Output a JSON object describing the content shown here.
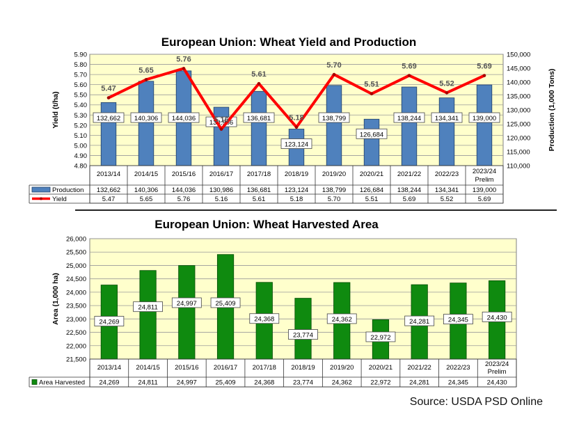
{
  "source": "Source: USDA PSD Online",
  "chart_data": [
    {
      "type": "bar",
      "title": "European Union: Wheat Yield and Production",
      "categories": [
        "2013/14",
        "2014/15",
        "2015/16",
        "2016/17",
        "2017/18",
        "2018/19",
        "2019/20",
        "2020/21",
        "2021/22",
        "2022/23",
        "2023/24 Prelim"
      ],
      "category_lines": [
        [
          "2013/14"
        ],
        [
          "2014/15"
        ],
        [
          "2015/16"
        ],
        [
          "2016/17"
        ],
        [
          "2017/18"
        ],
        [
          "2018/19"
        ],
        [
          "2019/20"
        ],
        [
          "2020/21"
        ],
        [
          "2021/22"
        ],
        [
          "2022/23"
        ],
        [
          "2023/24",
          "Prelim"
        ]
      ],
      "ylabel": "Yield (t/ha)",
      "y2label": "Production (1,000 Tons)",
      "ylim": [
        4.8,
        5.9
      ],
      "y2lim": [
        110000,
        150000
      ],
      "yticks": [
        "4.80",
        "4.90",
        "5.00",
        "5.10",
        "5.20",
        "5.30",
        "5.40",
        "5.50",
        "5.60",
        "5.70",
        "5.80",
        "5.90"
      ],
      "y2ticks": [
        "110,000",
        "115,000",
        "120,000",
        "125,000",
        "130,000",
        "135,000",
        "140,000",
        "145,000",
        "150,000"
      ],
      "series": [
        {
          "name": "Production",
          "type": "bar",
          "axis": "right",
          "color": "#4f81bd",
          "values": [
            132662,
            140306,
            144036,
            130986,
            136681,
            123124,
            138799,
            126684,
            138244,
            134341,
            139000
          ],
          "labels": [
            "132,662",
            "140,306",
            "144,036",
            "130,986",
            "136,681",
            "123,124",
            "138,799",
            "126,684",
            "138,244",
            "134,341",
            "139,000"
          ]
        },
        {
          "name": "Yield",
          "type": "line",
          "axis": "left",
          "color": "#ff0000",
          "values": [
            5.47,
            5.65,
            5.76,
            5.16,
            5.61,
            5.18,
            5.7,
            5.51,
            5.69,
            5.52,
            5.69
          ],
          "labels": [
            "5.47",
            "5.65",
            "5.76",
            "5.16",
            "5.61",
            "5.18",
            "5.70",
            "5.51",
            "5.69",
            "5.52",
            "5.69"
          ]
        }
      ],
      "grid": true,
      "plot_background": "#ffffcc",
      "legend": "data-table"
    },
    {
      "type": "bar",
      "title": "European Union: Wheat Harvested Area",
      "categories": [
        "2013/14",
        "2014/15",
        "2015/16",
        "2016/17",
        "2017/18",
        "2018/19",
        "2019/20",
        "2020/21",
        "2021/22",
        "2022/23",
        "2023/24 Prelim"
      ],
      "category_lines": [
        [
          "2013/14"
        ],
        [
          "2014/15"
        ],
        [
          "2015/16"
        ],
        [
          "2016/17"
        ],
        [
          "2017/18"
        ],
        [
          "2018/19"
        ],
        [
          "2019/20"
        ],
        [
          "2020/21"
        ],
        [
          "2021/22"
        ],
        [
          "2022/23"
        ],
        [
          "2023/24",
          "Prelim"
        ]
      ],
      "ylabel": "Area  (1,000  ha)",
      "ylim": [
        21500,
        26000
      ],
      "yticks": [
        "21,500",
        "22,000",
        "22,500",
        "23,000",
        "23,500",
        "24,000",
        "24,500",
        "25,000",
        "25,500",
        "26,000"
      ],
      "series": [
        {
          "name": "Area Harvested",
          "type": "bar",
          "color": "#0f8a0f",
          "values": [
            24269,
            24811,
            24997,
            25409,
            24368,
            23774,
            24362,
            22972,
            24281,
            24345,
            24430
          ],
          "labels": [
            "24,269",
            "24,811",
            "24,997",
            "25,409",
            "24,368",
            "23,774",
            "24,362",
            "22,972",
            "24,281",
            "24,345",
            "24,430"
          ]
        }
      ],
      "grid": true,
      "plot_background": "#ffffcc",
      "legend": "data-table"
    }
  ]
}
